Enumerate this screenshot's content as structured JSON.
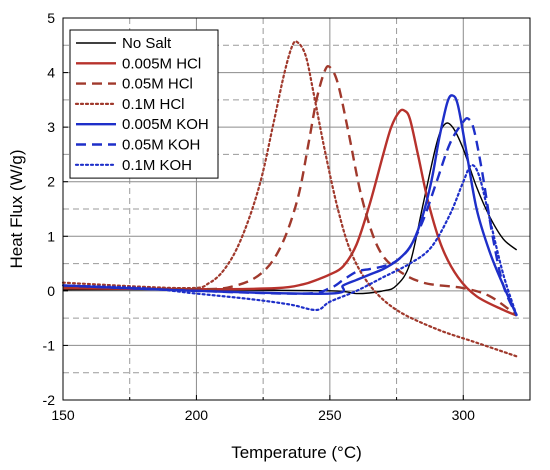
{
  "chart_data": {
    "type": "line",
    "xlabel": "Temperature (°C)",
    "ylabel": "Heat Flux (W/g)",
    "xlim": [
      150,
      325
    ],
    "ylim": [
      -2,
      5
    ],
    "x_ticks": [
      150,
      200,
      250,
      300
    ],
    "y_ticks": [
      -2,
      -1,
      0,
      1,
      2,
      3,
      4,
      5
    ],
    "grid": true,
    "legend_position": "top-left",
    "series": [
      {
        "name": "No Salt",
        "color": "#000000",
        "style": "solid",
        "width": 1.4,
        "x": [
          150,
          200,
          250,
          260,
          270,
          275,
          280,
          285,
          290,
          293,
          296,
          300,
          305,
          310,
          315,
          320
        ],
        "y": [
          0.02,
          0.02,
          0.0,
          -0.05,
          0.0,
          0.1,
          0.5,
          1.6,
          2.7,
          3.05,
          3.0,
          2.6,
          1.9,
          1.35,
          0.95,
          0.75
        ]
      },
      {
        "name": "0.005M HCl",
        "color": "#b7322c",
        "style": "solid",
        "width": 2.4,
        "x": [
          150,
          200,
          230,
          240,
          245,
          250,
          255,
          260,
          265,
          270,
          273,
          276,
          278,
          280,
          283,
          287,
          292,
          298,
          305,
          315,
          320
        ],
        "y": [
          0.05,
          0.03,
          0.05,
          0.12,
          0.2,
          0.3,
          0.45,
          0.85,
          1.6,
          2.5,
          3.0,
          3.28,
          3.3,
          3.15,
          2.5,
          1.6,
          0.8,
          0.25,
          -0.1,
          -0.35,
          -0.45
        ]
      },
      {
        "name": "0.05M HCl",
        "color": "#a0392c",
        "style": "dashed",
        "width": 2.4,
        "x": [
          150,
          200,
          215,
          225,
          232,
          238,
          242,
          245,
          248,
          250,
          253,
          257,
          262,
          268,
          275,
          285,
          300,
          310,
          320
        ],
        "y": [
          0.08,
          0.03,
          0.1,
          0.35,
          0.85,
          1.7,
          2.7,
          3.5,
          4.02,
          4.1,
          3.8,
          2.9,
          1.7,
          0.8,
          0.4,
          0.15,
          0.05,
          -0.1,
          -0.45
        ]
      },
      {
        "name": "0.1M HCl",
        "color": "#a0392c",
        "style": "dotted",
        "width": 2.2,
        "x": [
          150,
          195,
          205,
          212,
          218,
          224,
          229,
          233,
          236,
          238,
          241,
          244,
          248,
          253,
          258,
          265,
          275,
          290,
          305,
          320
        ],
        "y": [
          0.15,
          0.05,
          0.15,
          0.5,
          1.1,
          2.0,
          3.1,
          4.0,
          4.5,
          4.55,
          4.3,
          3.6,
          2.6,
          1.5,
          0.7,
          0.1,
          -0.35,
          -0.7,
          -0.95,
          -1.2
        ]
      },
      {
        "name": "0.005M KOH",
        "color": "#1e2fc9",
        "style": "solid",
        "width": 2.4,
        "x": [
          150,
          200,
          250,
          255,
          260,
          265,
          270,
          275,
          280,
          284,
          288,
          291,
          294,
          296,
          298,
          301,
          305,
          310,
          315,
          320
        ],
        "y": [
          0.1,
          0.0,
          -0.05,
          0.1,
          0.2,
          0.3,
          0.4,
          0.55,
          0.8,
          1.25,
          2.0,
          2.8,
          3.45,
          3.58,
          3.4,
          2.6,
          1.5,
          0.7,
          0.1,
          -0.45
        ]
      },
      {
        "name": "0.05M KOH",
        "color": "#1e2fc9",
        "style": "dashed",
        "width": 2.4,
        "x": [
          150,
          200,
          240,
          250,
          255,
          260,
          265,
          270,
          275,
          280,
          285,
          290,
          295,
          300,
          302,
          304,
          307,
          311,
          315,
          320
        ],
        "y": [
          0.1,
          0.0,
          -0.05,
          0.05,
          0.2,
          0.35,
          0.4,
          0.45,
          0.55,
          0.8,
          1.3,
          2.0,
          2.7,
          3.1,
          3.15,
          2.95,
          2.2,
          1.0,
          0.1,
          -0.45
        ]
      },
      {
        "name": "0.1M KOH",
        "color": "#1e2fc9",
        "style": "dotted",
        "width": 2.2,
        "x": [
          150,
          180,
          200,
          220,
          235,
          245,
          250,
          260,
          270,
          280,
          288,
          295,
          300,
          303,
          306,
          310,
          315,
          320
        ],
        "y": [
          0.1,
          0.05,
          -0.05,
          -0.15,
          -0.25,
          -0.35,
          -0.2,
          0.0,
          0.25,
          0.5,
          0.8,
          1.4,
          2.0,
          2.3,
          2.1,
          1.3,
          0.3,
          -0.45
        ]
      }
    ]
  }
}
